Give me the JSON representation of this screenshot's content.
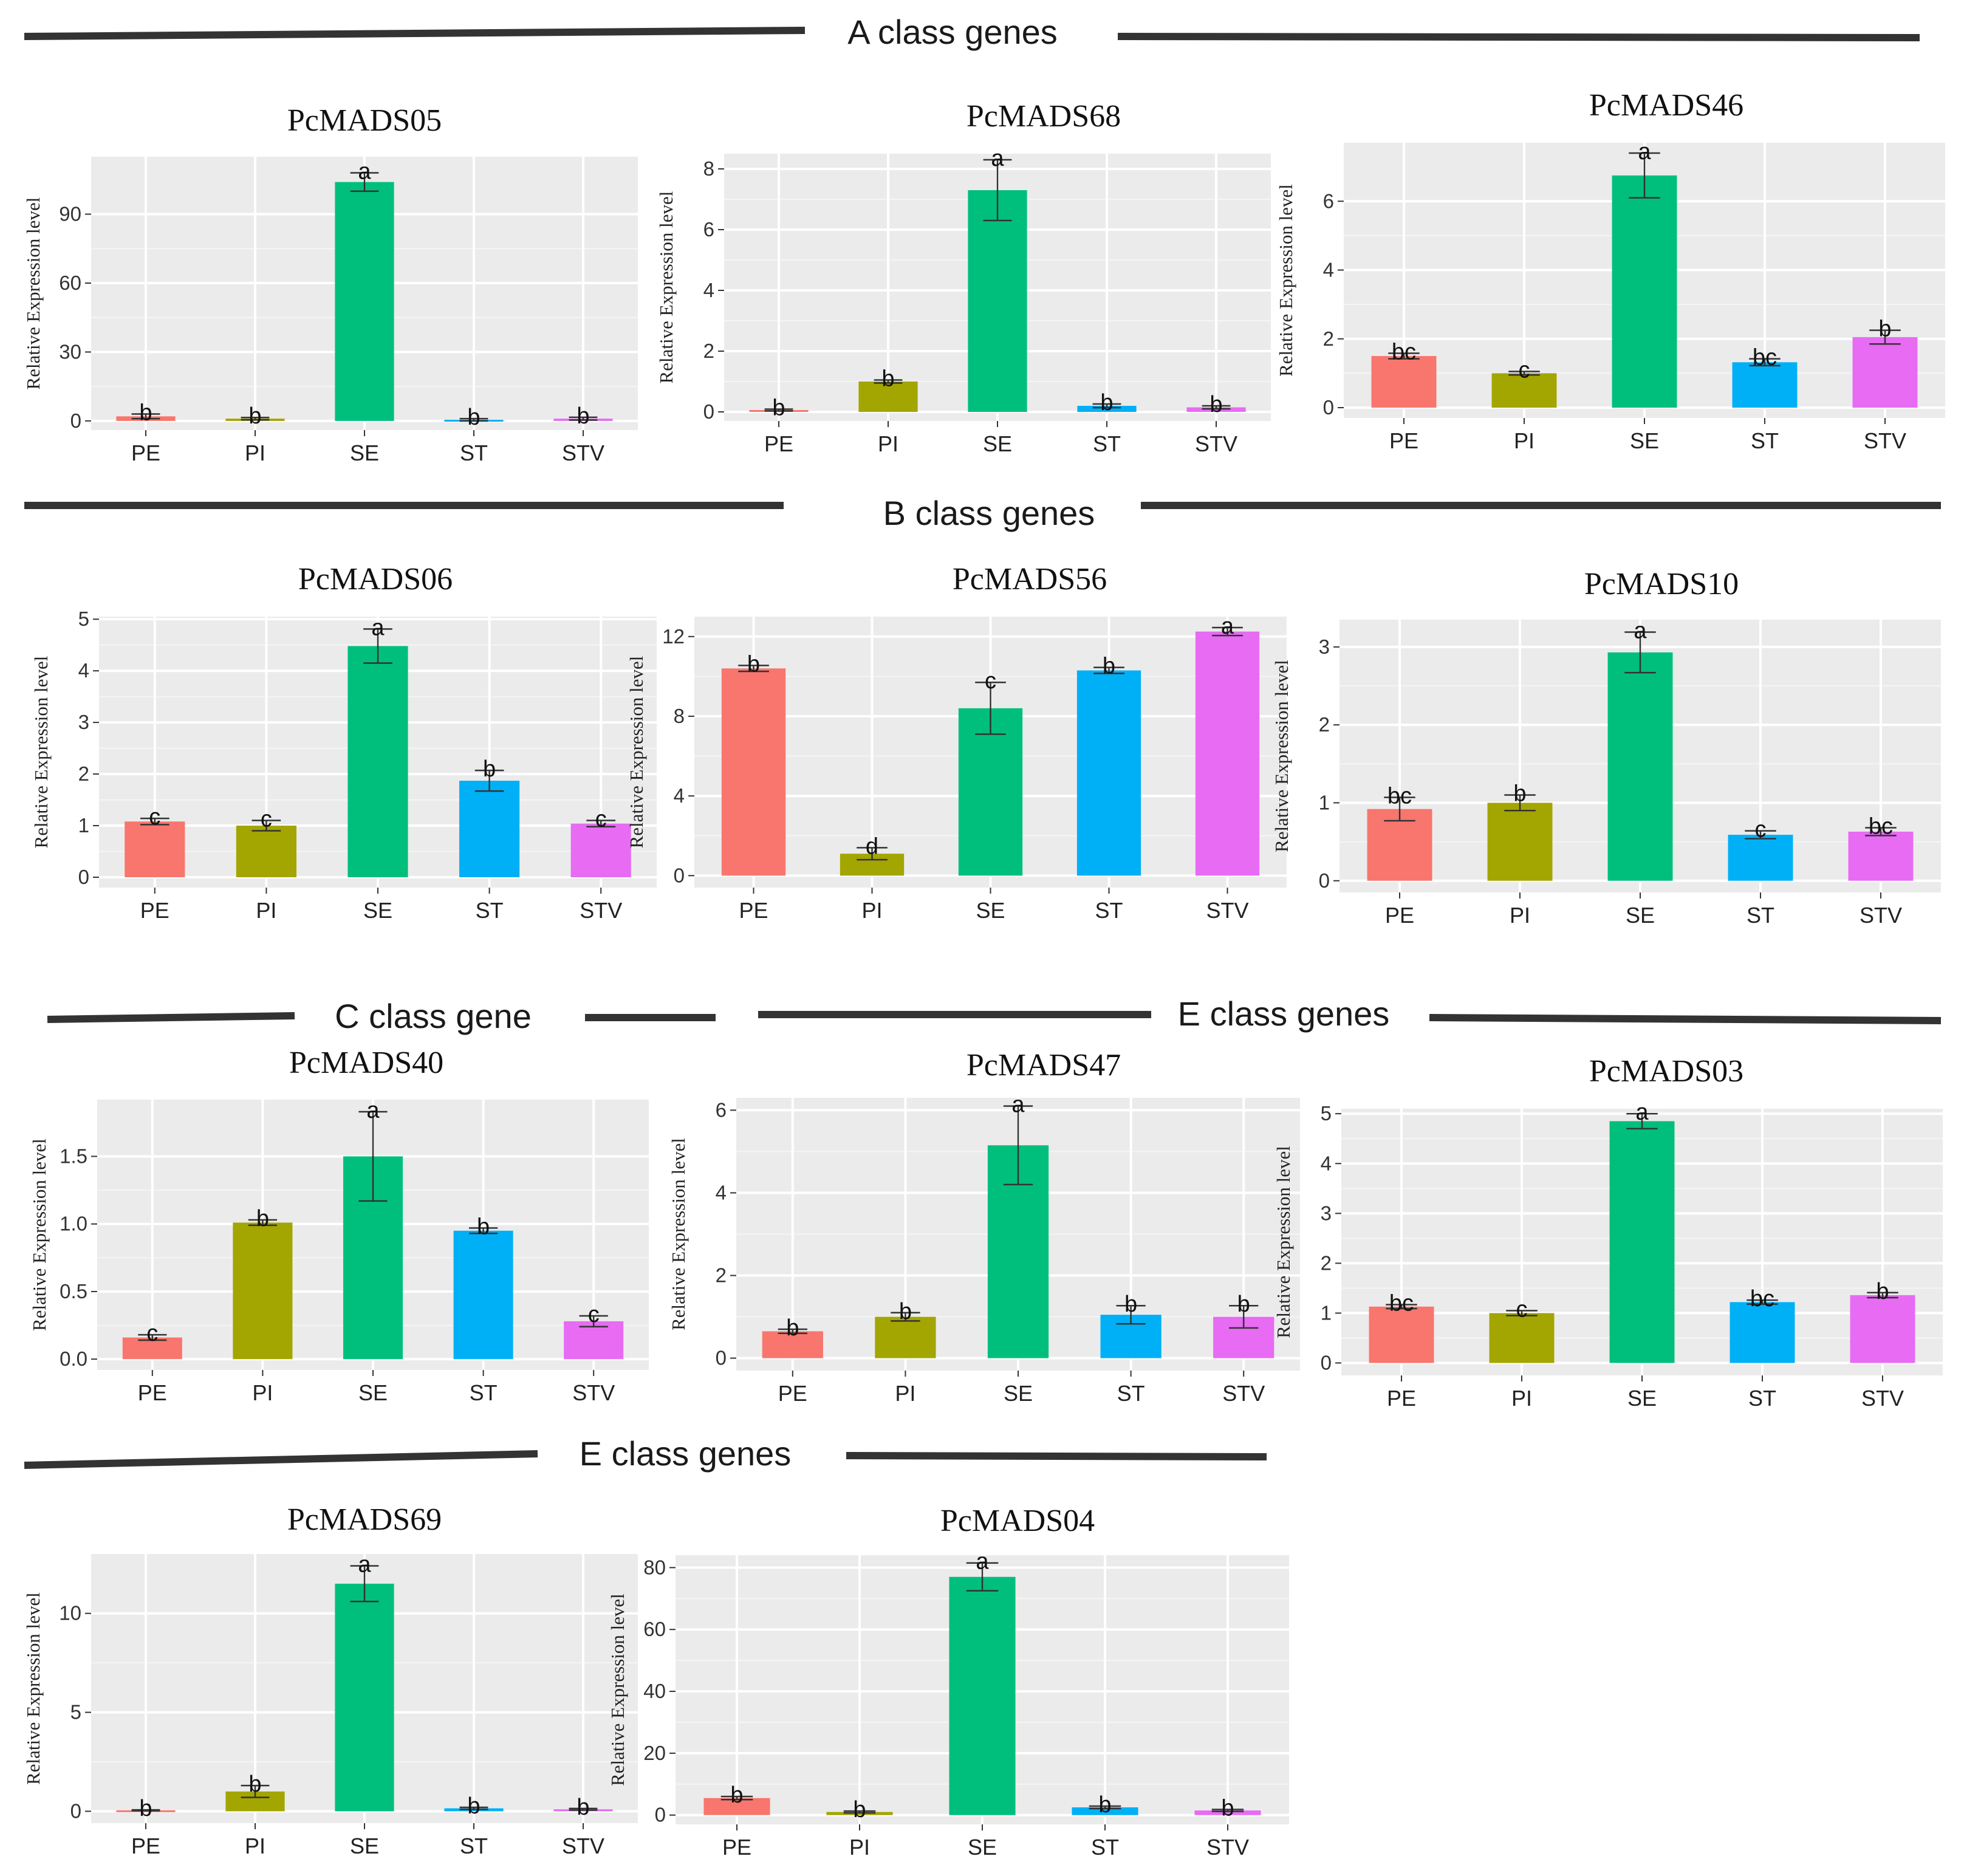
{
  "figure": {
    "section_titles": [
      "A class genes",
      "B class genes",
      "C class gene",
      "E class genes",
      "E class genes"
    ]
  },
  "chart_data": [
    {
      "type": "bar",
      "title": "PcMADS05",
      "ylabel": "Relative Expression level",
      "categories": [
        "PE",
        "PI",
        "SE",
        "ST",
        "STV"
      ],
      "values": [
        2,
        1,
        104,
        0.5,
        1
      ],
      "errors": [
        1,
        0.5,
        4,
        0.5,
        0.6
      ],
      "letters": [
        "b",
        "b",
        "a",
        "b",
        "b"
      ],
      "ylim": [
        -4,
        115
      ],
      "yticks": [
        0,
        30,
        60,
        90
      ]
    },
    {
      "type": "bar",
      "title": "PcMADS68",
      "ylabel": "Relative Expression level",
      "categories": [
        "PE",
        "PI",
        "SE",
        "ST",
        "STV"
      ],
      "values": [
        0.06,
        1.0,
        7.3,
        0.2,
        0.15
      ],
      "errors": [
        0.03,
        0.05,
        1.0,
        0.06,
        0.05
      ],
      "letters": [
        "b",
        "b",
        "a",
        "b",
        "b"
      ],
      "ylim": [
        -0.3,
        8.5
      ],
      "yticks": [
        0,
        2,
        4,
        6,
        8
      ]
    },
    {
      "type": "bar",
      "title": "PcMADS46",
      "ylabel": "Relative Expression level",
      "categories": [
        "PE",
        "PI",
        "SE",
        "ST",
        "STV"
      ],
      "values": [
        1.5,
        1.0,
        6.75,
        1.32,
        2.05
      ],
      "errors": [
        0.08,
        0.05,
        0.65,
        0.1,
        0.2
      ],
      "letters": [
        "bc",
        "c",
        "a",
        "bc",
        "b"
      ],
      "ylim": [
        -0.3,
        7.7
      ],
      "yticks": [
        0,
        2,
        4,
        6
      ]
    },
    {
      "type": "bar",
      "title": "PcMADS06",
      "ylabel": "Relative Expression level",
      "categories": [
        "PE",
        "PI",
        "SE",
        "ST",
        "STV"
      ],
      "values": [
        1.08,
        1.0,
        4.48,
        1.87,
        1.04
      ],
      "errors": [
        0.06,
        0.1,
        0.33,
        0.2,
        0.06
      ],
      "letters": [
        "c",
        "c",
        "a",
        "b",
        "c"
      ],
      "ylim": [
        -0.2,
        5.05
      ],
      "yticks": [
        0,
        1,
        2,
        3,
        4,
        5
      ]
    },
    {
      "type": "bar",
      "title": "PcMADS56",
      "ylabel": "Relative Expression level",
      "categories": [
        "PE",
        "PI",
        "SE",
        "ST",
        "STV"
      ],
      "values": [
        10.4,
        1.1,
        8.4,
        10.3,
        12.25
      ],
      "errors": [
        0.15,
        0.3,
        1.3,
        0.15,
        0.2
      ],
      "letters": [
        "b",
        "d",
        "c",
        "b",
        "a"
      ],
      "ylim": [
        -0.6,
        13.0
      ],
      "yticks": [
        0,
        4,
        8,
        12
      ]
    },
    {
      "type": "bar",
      "title": "PcMADS10",
      "ylabel": "Relative Expression level",
      "categories": [
        "PE",
        "PI",
        "SE",
        "ST",
        "STV"
      ],
      "values": [
        0.92,
        1.0,
        2.93,
        0.59,
        0.63
      ],
      "errors": [
        0.15,
        0.1,
        0.26,
        0.05,
        0.05
      ],
      "letters": [
        "bc",
        "b",
        "a",
        "c",
        "bc"
      ],
      "ylim": [
        -0.15,
        3.35
      ],
      "yticks": [
        0,
        1,
        2,
        3
      ]
    },
    {
      "type": "bar",
      "title": "PcMADS40",
      "ylabel": "Relative Expression level",
      "categories": [
        "PE",
        "PI",
        "SE",
        "ST",
        "STV"
      ],
      "values": [
        0.16,
        1.01,
        1.5,
        0.95,
        0.28
      ],
      "errors": [
        0.02,
        0.02,
        0.33,
        0.02,
        0.04
      ],
      "letters": [
        "c",
        "b",
        "a",
        "b",
        "c"
      ],
      "ylim": [
        -0.08,
        1.92
      ],
      "yticks": [
        0.0,
        0.5,
        1.0,
        1.5
      ],
      "tick_decimals": 1
    },
    {
      "type": "bar",
      "title": "PcMADS47",
      "ylabel": "Relative Expression level",
      "categories": [
        "PE",
        "PI",
        "SE",
        "ST",
        "STV"
      ],
      "values": [
        0.65,
        1.0,
        5.15,
        1.05,
        1.0
      ],
      "errors": [
        0.05,
        0.1,
        0.95,
        0.22,
        0.27
      ],
      "letters": [
        "b",
        "b",
        "a",
        "b",
        "b"
      ],
      "ylim": [
        -0.3,
        6.3
      ],
      "yticks": [
        0,
        2,
        4,
        6
      ]
    },
    {
      "type": "bar",
      "title": "PcMADS03",
      "ylabel": "Relative Expression level",
      "categories": [
        "PE",
        "PI",
        "SE",
        "ST",
        "STV"
      ],
      "values": [
        1.13,
        1.0,
        4.85,
        1.22,
        1.36
      ],
      "errors": [
        0.04,
        0.05,
        0.15,
        0.04,
        0.05
      ],
      "letters": [
        "bc",
        "c",
        "a",
        "bc",
        "b"
      ],
      "ylim": [
        -0.25,
        5.1
      ],
      "yticks": [
        0,
        1,
        2,
        3,
        4,
        5
      ]
    },
    {
      "type": "bar",
      "title": "PcMADS69",
      "ylabel": "Relative Expression level",
      "categories": [
        "PE",
        "PI",
        "SE",
        "ST",
        "STV"
      ],
      "values": [
        0.05,
        1.0,
        11.5,
        0.15,
        0.1
      ],
      "errors": [
        0.02,
        0.3,
        0.9,
        0.05,
        0.04
      ],
      "letters": [
        "b",
        "b",
        "a",
        "b",
        "b"
      ],
      "ylim": [
        -0.6,
        13.0
      ],
      "yticks": [
        0,
        5,
        10
      ]
    },
    {
      "type": "bar",
      "title": "PcMADS04",
      "ylabel": "Relative Expression level",
      "categories": [
        "PE",
        "PI",
        "SE",
        "ST",
        "STV"
      ],
      "values": [
        5.5,
        1.0,
        77,
        2.5,
        1.5
      ],
      "errors": [
        0.5,
        0.3,
        4.5,
        0.4,
        0.3
      ],
      "letters": [
        "b",
        "b",
        "a",
        "b",
        "b"
      ],
      "ylim": [
        -3,
        84
      ],
      "yticks": [
        0,
        20,
        40,
        60,
        80
      ]
    }
  ]
}
